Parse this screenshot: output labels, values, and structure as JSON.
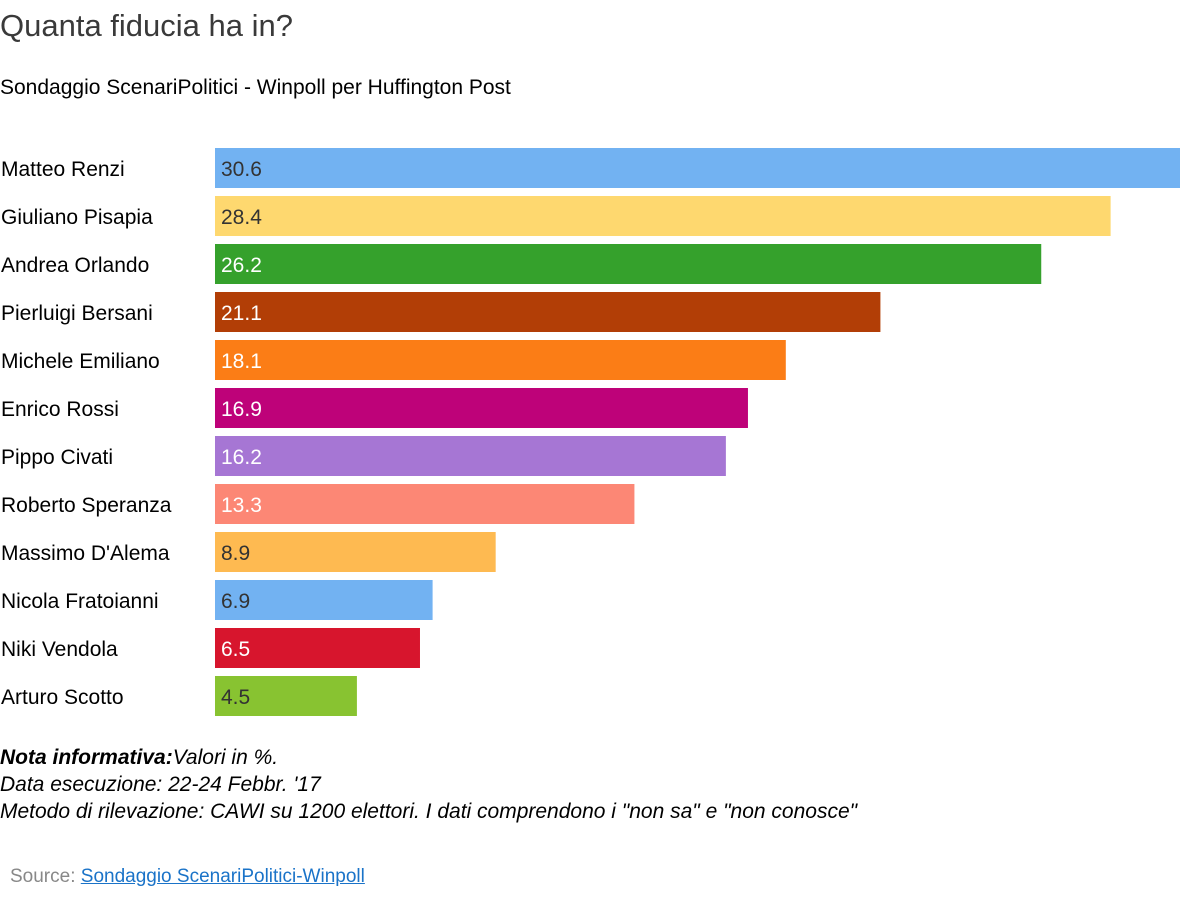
{
  "title": "Quanta fiducia ha in?",
  "subtitle": "Sondaggio ScenariPolitici - Winpoll per Huffington Post",
  "notes": {
    "label": "Nota informativa:",
    "values": "Valori in %.",
    "date": "Data esecuzione: 22-24 Febbr. '17",
    "method": "Metodo di rilevazione: CAWI su 1200 elettori. I dati comprendono i \"non sa\" e \"non conosce\""
  },
  "source": {
    "label": "Source:",
    "link_text": "Sondaggio ScenariPolitici-Winpoll"
  },
  "chart_data": {
    "type": "bar",
    "orientation": "horizontal",
    "title": "Quanta fiducia ha in?",
    "subtitle": "Sondaggio ScenariPolitici - Winpoll per Huffington Post",
    "categories": [
      "Matteo Renzi",
      "Giuliano Pisapia",
      "Andrea Orlando",
      "Pierluigi Bersani",
      "Michele Emiliano",
      "Enrico Rossi",
      "Pippo Civati",
      "Roberto Speranza",
      "Massimo D'Alema",
      "Nicola Fratoianni",
      "Niki Vendola",
      "Arturo Scotto"
    ],
    "values": [
      30.6,
      28.4,
      26.2,
      21.1,
      18.1,
      16.9,
      16.2,
      13.3,
      8.9,
      6.9,
      6.5,
      4.5
    ],
    "colors": [
      "#72b2f2",
      "#fed86f",
      "#35a12c",
      "#b23e06",
      "#fb7d16",
      "#be0279",
      "#a676d4",
      "#fc8775",
      "#feba51",
      "#72b2f2",
      "#d7152d",
      "#88c331"
    ],
    "label_colors": [
      "#333333",
      "#333333",
      "#ffffff",
      "#ffffff",
      "#ffffff",
      "#ffffff",
      "#ffffff",
      "#ffffff",
      "#333333",
      "#333333",
      "#ffffff",
      "#333333"
    ],
    "xlim": [
      0,
      30.6
    ],
    "grid": false,
    "legend": "none"
  }
}
